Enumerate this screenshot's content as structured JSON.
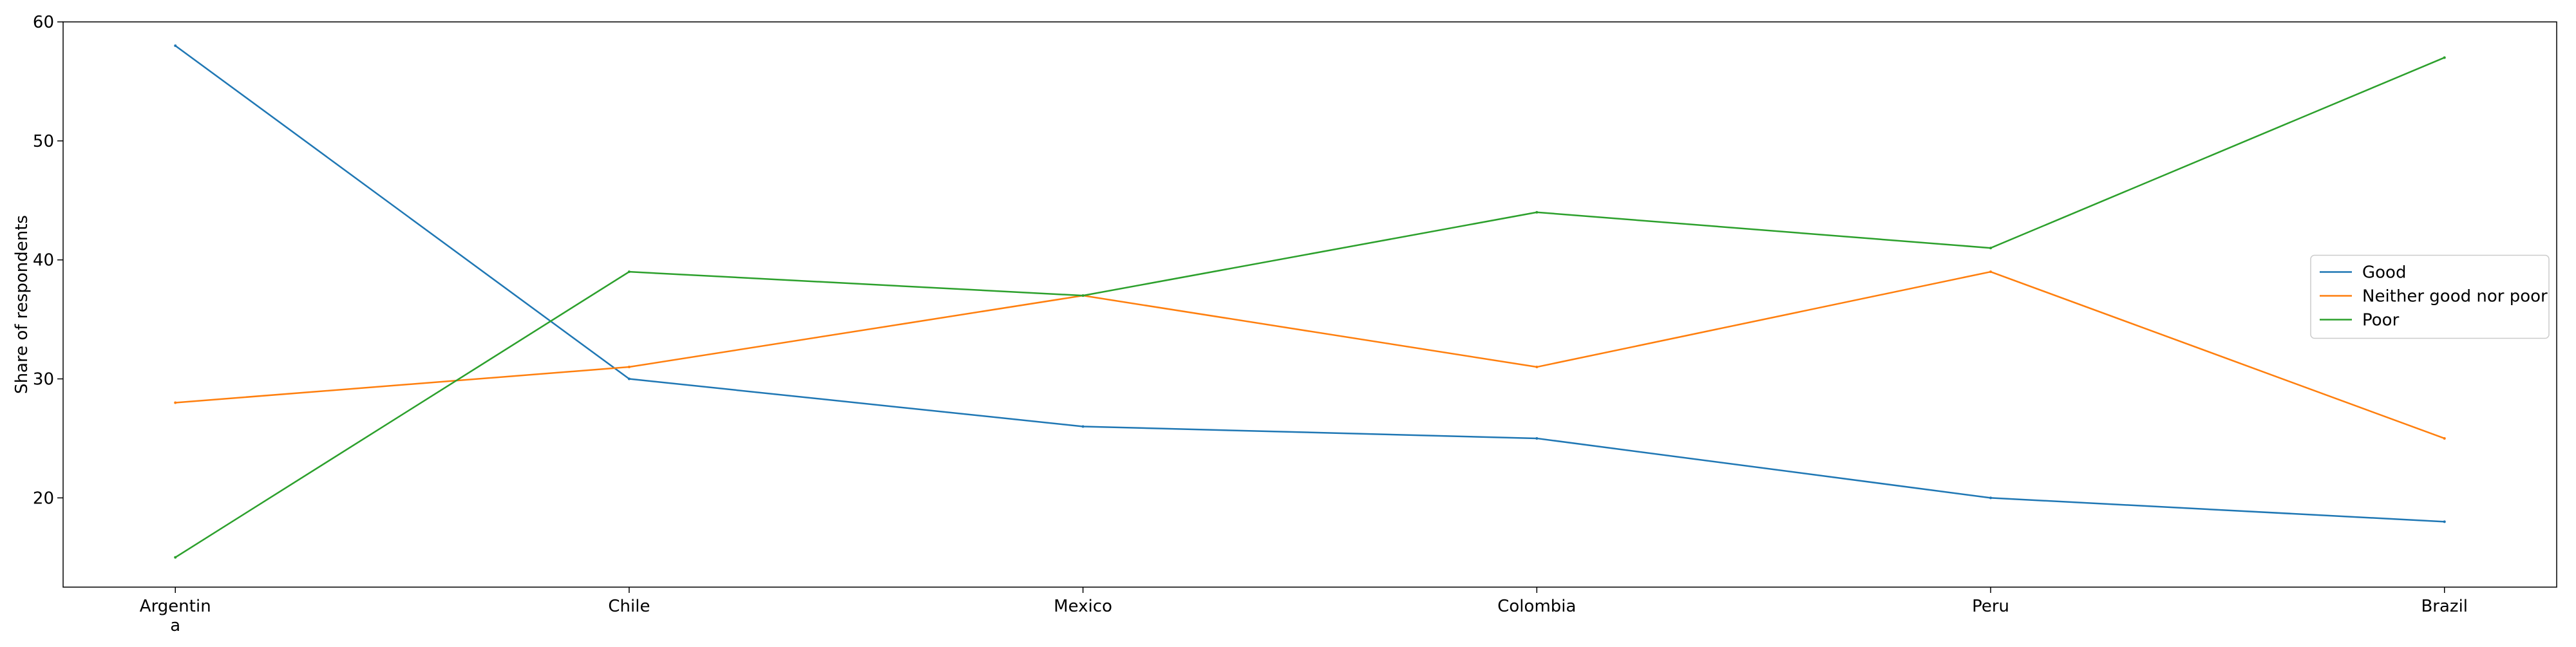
{
  "chart_data": {
    "type": "line",
    "title": "",
    "xlabel": "",
    "ylabel": "Share of respondents",
    "categories": [
      "Argentin\na",
      "Chile",
      "Mexico",
      "Colombia",
      "Peru",
      "Brazil"
    ],
    "ylim": [
      12.5,
      60
    ],
    "yticks": [
      20,
      30,
      40,
      50,
      60
    ],
    "grid": false,
    "legend_position": "center-right",
    "series": [
      {
        "name": "Good",
        "color": "#1f77b4",
        "values": [
          58,
          30,
          26,
          25,
          20,
          18
        ]
      },
      {
        "name": "Neither good nor poor",
        "color": "#ff7f0e",
        "values": [
          28,
          31,
          37,
          31,
          39,
          25
        ]
      },
      {
        "name": "Poor",
        "color": "#2ca02c",
        "values": [
          15,
          39,
          37,
          44,
          41,
          57
        ]
      }
    ]
  }
}
